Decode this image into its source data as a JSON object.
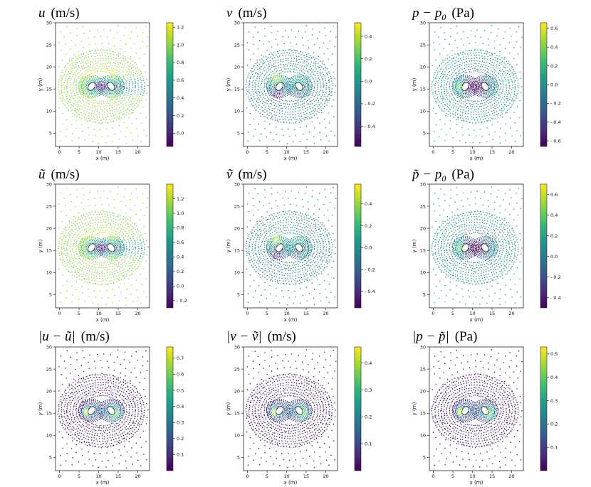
{
  "figure": {
    "colormap": "viridis",
    "colormap_stops": [
      "#440154",
      "#482878",
      "#3e4989",
      "#31688e",
      "#26828e",
      "#1f9e89",
      "#35b779",
      "#6ece58",
      "#b5de2b",
      "#fde725"
    ],
    "axes_color": "#222222"
  },
  "chart_data": [
    {
      "type": "scatter",
      "field": "u",
      "title": "u (m/s)",
      "title_parts": {
        "symbol": "u",
        "rest": "(m/s)"
      },
      "xlabel": "x (m)",
      "ylabel": "y (m)",
      "xlim": [
        -1,
        23
      ],
      "ylim": [
        2,
        30
      ],
      "xticks": [
        0,
        5,
        10,
        15,
        20
      ],
      "yticks": [
        5,
        10,
        15,
        20,
        25,
        30
      ],
      "colorbar": {
        "range": [
          -0.15,
          1.25
        ],
        "ticks": [
          "0.0",
          "0.2",
          "0.4",
          "0.6",
          "0.8",
          "1.0",
          "1.2"
        ],
        "tick_values": [
          0.0,
          0.2,
          0.4,
          0.6,
          0.8,
          1.0,
          1.2
        ]
      },
      "pattern": "u"
    },
    {
      "type": "scatter",
      "field": "v",
      "title": "v (m/s)",
      "title_parts": {
        "symbol": "v",
        "rest": "(m/s)"
      },
      "xlabel": "x (m)",
      "ylabel": "y (m)",
      "xlim": [
        -1,
        23
      ],
      "ylim": [
        2,
        30
      ],
      "xticks": [
        0,
        5,
        10,
        15,
        20
      ],
      "yticks": [
        5,
        10,
        15,
        20,
        25,
        30
      ],
      "colorbar": {
        "range": [
          -0.58,
          0.52
        ],
        "ticks": [
          "- 0.4",
          "- 0.2",
          "0.0",
          "0.2",
          "0.4"
        ],
        "tick_values": [
          -0.4,
          -0.2,
          0.0,
          0.2,
          0.4
        ]
      },
      "pattern": "v"
    },
    {
      "type": "scatter",
      "field": "p-p0",
      "title": "p − p0 (Pa)",
      "title_parts": {
        "symbol": "p − p",
        "sub": "0",
        "rest": "(Pa)"
      },
      "xlabel": "x (m)",
      "ylabel": "y (m)",
      "xlim": [
        -1,
        23
      ],
      "ylim": [
        2,
        30
      ],
      "xticks": [
        0,
        5,
        10,
        15,
        20
      ],
      "yticks": [
        5,
        10,
        15,
        20,
        25,
        30
      ],
      "colorbar": {
        "range": [
          -0.66,
          0.66
        ],
        "ticks": [
          "- 0.6",
          "- 0.4",
          "- 0.2",
          "0.0",
          "0.2",
          "0.4",
          "0.6"
        ],
        "tick_values": [
          -0.6,
          -0.4,
          -0.2,
          0.0,
          0.2,
          0.4,
          0.6
        ]
      },
      "pattern": "p"
    },
    {
      "type": "scatter",
      "field": "u~",
      "title": "ũ (m/s)",
      "title_parts": {
        "symbol": "ũ",
        "rest": "(m/s)"
      },
      "xlabel": "x (m)",
      "ylabel": "y (m)",
      "xlim": [
        -1,
        23
      ],
      "ylim": [
        2,
        30
      ],
      "xticks": [
        0,
        5,
        10,
        15,
        20
      ],
      "yticks": [
        5,
        10,
        15,
        20,
        25,
        30
      ],
      "colorbar": {
        "range": [
          -0.3,
          1.4
        ],
        "ticks": [
          "- 0.2",
          "0.0",
          "0.2",
          "0.4",
          "0.6",
          "0.8",
          "1.0",
          "1.2"
        ],
        "tick_values": [
          -0.2,
          0.0,
          0.2,
          0.4,
          0.6,
          0.8,
          1.0,
          1.2
        ]
      },
      "pattern": "u"
    },
    {
      "type": "scatter",
      "field": "v~",
      "title": "ṽ (m/s)",
      "title_parts": {
        "symbol": "ṽ",
        "rest": "(m/s)"
      },
      "xlabel": "x (m)",
      "ylabel": "y (m)",
      "xlim": [
        -1,
        23
      ],
      "ylim": [
        2,
        30
      ],
      "xticks": [
        0,
        5,
        10,
        15,
        20
      ],
      "yticks": [
        5,
        10,
        15,
        20,
        25,
        30
      ],
      "colorbar": {
        "range": [
          -0.55,
          0.58
        ],
        "ticks": [
          "- 0.4",
          "- 0.2",
          "0.0",
          "0.2",
          "0.4"
        ],
        "tick_values": [
          -0.4,
          -0.2,
          0.0,
          0.2,
          0.4
        ]
      },
      "pattern": "v"
    },
    {
      "type": "scatter",
      "field": "p~-p0",
      "title": "p̃ − p0 (Pa)",
      "title_parts": {
        "symbol": "p̃ − p",
        "sub": "0",
        "rest": "(Pa)"
      },
      "xlabel": "x (m)",
      "ylabel": "y (m)",
      "xlim": [
        -1,
        23
      ],
      "ylim": [
        2,
        30
      ],
      "xticks": [
        0,
        5,
        10,
        15,
        20
      ],
      "yticks": [
        5,
        10,
        15,
        20,
        25,
        30
      ],
      "colorbar": {
        "range": [
          -0.5,
          0.7
        ],
        "ticks": [
          "- 0.4",
          "- 0.2",
          "0.0",
          "0.2",
          "0.4",
          "0.6"
        ],
        "tick_values": [
          -0.4,
          -0.2,
          0.0,
          0.2,
          0.4,
          0.6
        ]
      },
      "pattern": "p"
    },
    {
      "type": "scatter",
      "field": "|u-u~|",
      "title": "|u − ũ| (m/s)",
      "title_parts": {
        "symbol": "|u − ũ|",
        "rest": "(m/s)"
      },
      "xlabel": "x (m)",
      "ylabel": "y (m)",
      "xlim": [
        -1,
        23
      ],
      "ylim": [
        2,
        30
      ],
      "xticks": [
        0,
        5,
        10,
        15,
        20
      ],
      "yticks": [
        5,
        10,
        15,
        20,
        25,
        30
      ],
      "colorbar": {
        "range": [
          0.0,
          0.77
        ],
        "ticks": [
          "0.1",
          "0.2",
          "0.3",
          "0.4",
          "0.5",
          "0.6",
          "0.7"
        ],
        "tick_values": [
          0.1,
          0.2,
          0.3,
          0.4,
          0.5,
          0.6,
          0.7
        ]
      },
      "pattern": "err"
    },
    {
      "type": "scatter",
      "field": "|v-v~|",
      "title": "|v − ṽ| (m/s)",
      "title_parts": {
        "symbol": "|v − ṽ|",
        "rest": "(m/s)"
      },
      "xlabel": "x (m)",
      "ylabel": "y (m)",
      "xlim": [
        -1,
        23
      ],
      "ylim": [
        2,
        30
      ],
      "xticks": [
        0,
        5,
        10,
        15,
        20
      ],
      "yticks": [
        5,
        10,
        15,
        20,
        25,
        30
      ],
      "colorbar": {
        "range": [
          0.0,
          0.46
        ],
        "ticks": [
          "0.1",
          "0.2",
          "0.3",
          "0.4"
        ],
        "tick_values": [
          0.1,
          0.2,
          0.3,
          0.4
        ]
      },
      "pattern": "err"
    },
    {
      "type": "scatter",
      "field": "|p-p~|",
      "title": "|p − p̃| (Pa)",
      "title_parts": {
        "symbol": "|p − p̃|",
        "rest": "(Pa)"
      },
      "xlabel": "x (m)",
      "ylabel": "y (m)",
      "xlim": [
        -1,
        23
      ],
      "ylim": [
        2,
        30
      ],
      "xticks": [
        0,
        5,
        10,
        15,
        20
      ],
      "yticks": [
        5,
        10,
        15,
        20,
        25,
        30
      ],
      "colorbar": {
        "range": [
          0.0,
          0.53
        ],
        "ticks": [
          "0.1",
          "0.2",
          "0.3",
          "0.4",
          "0.5"
        ],
        "tick_values": [
          0.1,
          0.2,
          0.3,
          0.4,
          0.5
        ]
      },
      "pattern": "err"
    }
  ]
}
